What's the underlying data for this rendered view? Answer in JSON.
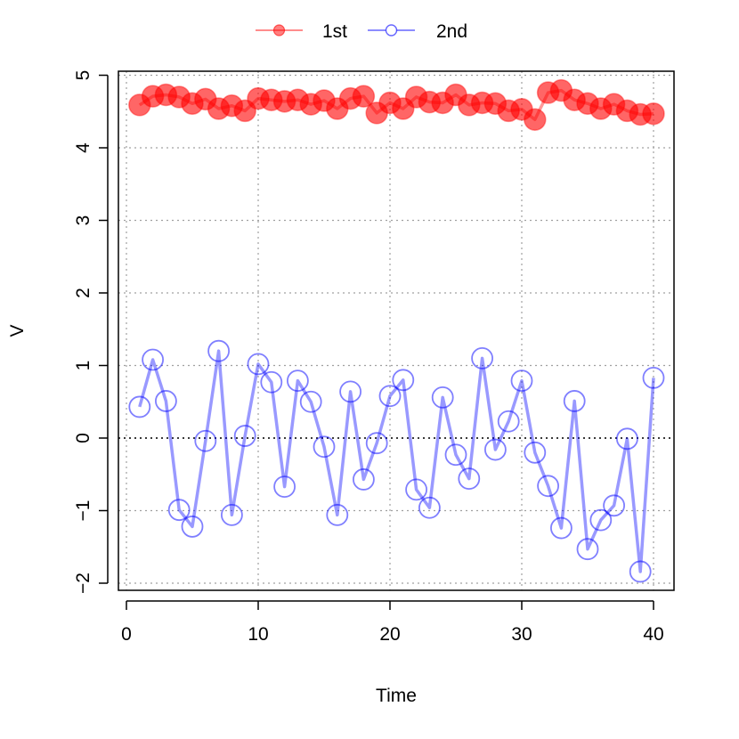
{
  "chart_data": {
    "type": "line",
    "xlabel": "Time",
    "ylabel": "V",
    "xlim": [
      0,
      41.5
    ],
    "ylim": [
      -2.15,
      5.1
    ],
    "xticks": [
      0,
      10,
      20,
      30,
      40
    ],
    "yticks": [
      -2,
      -1,
      0,
      1,
      2,
      3,
      4,
      5
    ],
    "grid": true,
    "zero_line": true,
    "legend_position": "top-center",
    "x": [
      1,
      2,
      3,
      4,
      5,
      6,
      7,
      8,
      9,
      10,
      11,
      12,
      13,
      14,
      15,
      16,
      17,
      18,
      19,
      20,
      21,
      22,
      23,
      24,
      25,
      26,
      27,
      28,
      29,
      30,
      31,
      32,
      33,
      34,
      35,
      36,
      37,
      38,
      39,
      40
    ],
    "series": [
      {
        "name": "1st",
        "color": "#ff0000",
        "marker": "filled-circle",
        "values": [
          4.59,
          4.71,
          4.73,
          4.7,
          4.61,
          4.67,
          4.54,
          4.58,
          4.51,
          4.68,
          4.66,
          4.64,
          4.66,
          4.6,
          4.65,
          4.54,
          4.68,
          4.71,
          4.48,
          4.62,
          4.54,
          4.7,
          4.63,
          4.62,
          4.73,
          4.59,
          4.62,
          4.61,
          4.51,
          4.53,
          4.39,
          4.76,
          4.79,
          4.66,
          4.61,
          4.54,
          4.6,
          4.51,
          4.46,
          4.47
        ]
      },
      {
        "name": "2nd",
        "color": "#0000ff",
        "marker": "open-circle",
        "values": [
          0.43,
          1.08,
          0.51,
          -0.99,
          -1.22,
          -0.04,
          1.2,
          -1.06,
          0.03,
          1.02,
          0.77,
          -0.67,
          0.79,
          0.5,
          -0.12,
          -1.06,
          0.64,
          -0.57,
          -0.07,
          0.58,
          0.8,
          -0.71,
          -0.96,
          0.56,
          -0.23,
          -0.56,
          1.1,
          -0.16,
          0.23,
          0.79,
          -0.2,
          -0.66,
          -1.24,
          0.51,
          -1.53,
          -1.13,
          -0.93,
          -0.01,
          -1.84,
          0.83
        ]
      }
    ]
  }
}
